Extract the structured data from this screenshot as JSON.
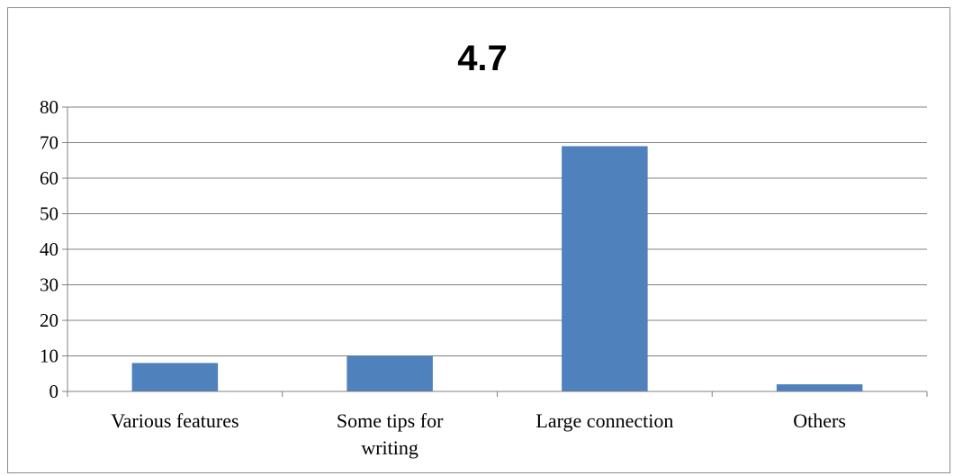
{
  "chart_data": {
    "type": "bar",
    "title": "4.7",
    "xlabel": "",
    "ylabel": "",
    "ylim": [
      0,
      80
    ],
    "yticks": [
      0,
      10,
      20,
      30,
      40,
      50,
      60,
      70,
      80
    ],
    "categories": [
      [
        "Various features"
      ],
      [
        "Some tips for",
        "writing"
      ],
      [
        "Large connection"
      ],
      [
        "Others"
      ]
    ],
    "values": [
      8,
      10,
      69,
      2
    ],
    "grid": true,
    "legend": "none",
    "colors": {
      "bar": "#4f81bd",
      "grid": "#808080",
      "axis": "#808080"
    }
  }
}
